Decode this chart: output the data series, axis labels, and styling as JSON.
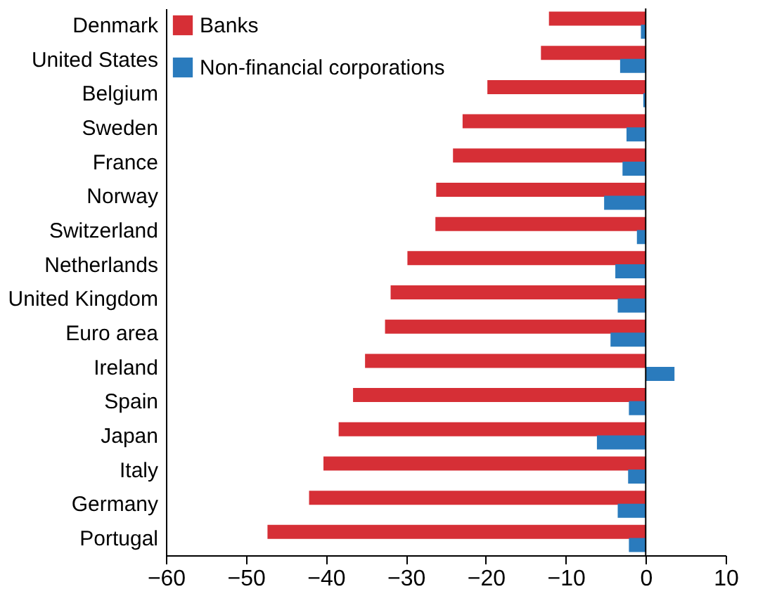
{
  "chart_data": {
    "type": "bar",
    "orientation": "horizontal",
    "categories": [
      "Denmark",
      "United States",
      "Belgium",
      "Sweden",
      "France",
      "Norway",
      "Switzerland",
      "Netherlands",
      "United Kingdom",
      "Euro area",
      "Ireland",
      "Spain",
      "Japan",
      "Italy",
      "Germany",
      "Portugal"
    ],
    "series": [
      {
        "name": "Banks",
        "color": "#d62f36",
        "values": [
          -12.1,
          -13.1,
          -19.8,
          -22.9,
          -24.1,
          -26.2,
          -26.3,
          -29.8,
          -31.9,
          -32.6,
          -35.1,
          -36.6,
          -38.4,
          -40.3,
          -42.1,
          -47.3
        ]
      },
      {
        "name": "Non-financial corporations",
        "color": "#2a7bbd",
        "values": [
          -0.6,
          -3.2,
          -0.3,
          -2.4,
          -2.9,
          -5.2,
          -1.1,
          -3.8,
          -3.5,
          -4.4,
          3.6,
          -2.1,
          -6.1,
          -2.2,
          -3.5,
          -2.1
        ]
      }
    ],
    "xlim": [
      -60,
      10
    ],
    "xticks": [
      -60,
      -50,
      -40,
      -30,
      -20,
      -10,
      0,
      10
    ],
    "ref_lines": [
      {
        "axis": "x",
        "value": 0
      }
    ],
    "grid": false,
    "legend": "top left"
  }
}
